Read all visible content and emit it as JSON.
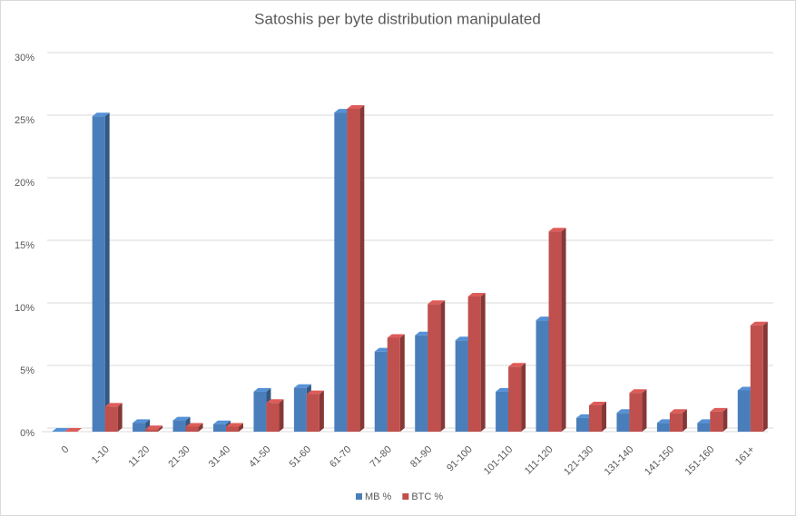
{
  "chart_data": {
    "type": "bar3d",
    "title": "Satoshis per byte distribution manipulated",
    "categories": [
      "0",
      "1-10",
      "11-20",
      "21-30",
      "31-40",
      "41-50",
      "51-60",
      "61-70",
      "71-80",
      "81-90",
      "91-100",
      "101-110",
      "111-120",
      "121-130",
      "131-140",
      "141-150",
      "151-160",
      "161+"
    ],
    "series": [
      {
        "name": "MB %",
        "color": "#4a7ebb",
        "values": [
          0,
          25.2,
          0.7,
          0.9,
          0.6,
          3.2,
          3.5,
          25.5,
          6.4,
          7.7,
          7.3,
          3.2,
          8.9,
          1.1,
          1.5,
          0.7,
          0.7,
          3.3
        ]
      },
      {
        "name": "BTC %",
        "color": "#c0504d",
        "values": [
          0,
          2.0,
          0.2,
          0.4,
          0.4,
          2.3,
          3.0,
          25.8,
          7.5,
          10.2,
          10.8,
          5.2,
          16.0,
          2.1,
          3.1,
          1.5,
          1.6,
          8.5
        ]
      }
    ],
    "ylim": [
      0,
      30
    ],
    "yticks": [
      {
        "value": 0,
        "label": "0%"
      },
      {
        "value": 5,
        "label": "5%"
      },
      {
        "value": 10,
        "label": "10%"
      },
      {
        "value": 15,
        "label": "15%"
      },
      {
        "value": 20,
        "label": "20%"
      },
      {
        "value": 25,
        "label": "25%"
      },
      {
        "value": 30,
        "label": "30%"
      }
    ],
    "grid": true,
    "legend": "bottom"
  }
}
